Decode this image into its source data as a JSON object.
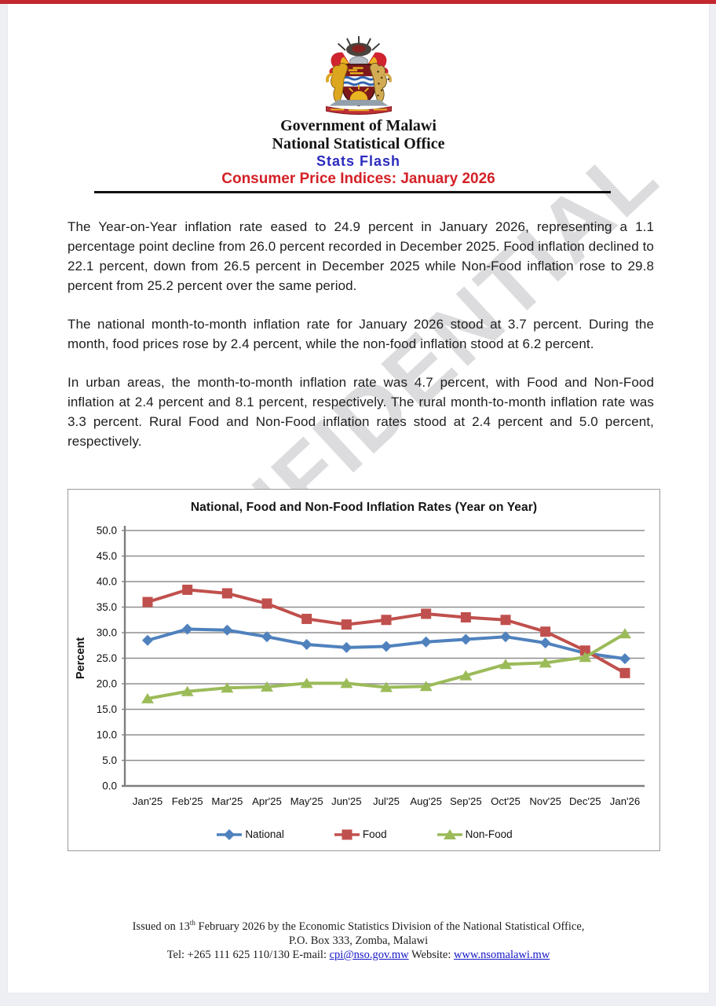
{
  "page": {
    "watermark": "CONFIDENTIAL",
    "header": {
      "org_line1": "Government of Malawi",
      "org_line2": "National Statistical Office",
      "subtitle": "Stats Flash",
      "title": "Consumer Price Indices: January 2026",
      "crest_icon": "malawi-coat-of-arms"
    },
    "paragraphs": [
      "The Year-on-Year inflation rate eased to 24.9 percent in January 2026, representing a 1.1 percentage point decline from 26.0 percent recorded in December 2025. Food inflation declined to 22.1 percent, down from 26.5 percent in December 2025 while Non-Food inflation rose to 29.8 percent from 25.2 percent over the same period.",
      "The national month-to-month inflation rate for January 2026 stood at 3.7 percent. During the month, food prices rose by 2.4 percent, while the non-food inflation stood at 6.2 percent.",
      "In urban areas, the month-to-month inflation rate was 4.7 percent, with Food and Non-Food inflation at 2.4 percent and 8.1 percent, respectively. The rural month-to-month inflation rate was 3.3 percent. Rural Food and Non-Food inflation rates stood at 2.4 percent and 5.0 percent, respectively."
    ],
    "footer": {
      "line1_prefix": "Issued on 13",
      "line1_sup": "th",
      "line1_rest": " February 2026 by the Economic Statistics Division of the National Statistical Office,",
      "line2": "P.O. Box 333, Zomba, Malawi",
      "line3_tel": "Tel: +265 111 625 110/130 E-mail: ",
      "email_link": "cpi@nso.gov.mw",
      "line3_web": " Website: ",
      "website_link": "www.nsomalawi.mw"
    },
    "accent_colors": {
      "top_bar_red": "#c2282e",
      "title_red": "#d42127",
      "subtitle_blue": "#2b2bbd"
    }
  },
  "chart_data": {
    "type": "line",
    "title": "National, Food and Non-Food Inflation Rates (Year on Year)",
    "xlabel": "",
    "ylabel": "Percent",
    "ylim": [
      0,
      50
    ],
    "ytick_step": 5,
    "grid": true,
    "legend_position": "bottom",
    "categories": [
      "Jan'25",
      "Feb'25",
      "Mar'25",
      "Apr'25",
      "May'25",
      "Jun'25",
      "Jul'25",
      "Aug'25",
      "Sep'25",
      "Oct'25",
      "Nov'25",
      "Dec'25",
      "Jan'26"
    ],
    "series": [
      {
        "name": "National",
        "color": "#4F81BD",
        "marker": "diamond",
        "values": [
          28.5,
          30.7,
          30.5,
          29.2,
          27.7,
          27.1,
          27.3,
          28.2,
          28.7,
          29.2,
          28.0,
          26.0,
          24.9
        ]
      },
      {
        "name": "Food",
        "color": "#C0504D",
        "marker": "square",
        "values": [
          36.0,
          38.4,
          37.7,
          35.7,
          32.7,
          31.6,
          32.5,
          33.7,
          33.0,
          32.5,
          30.2,
          26.5,
          22.1
        ]
      },
      {
        "name": "Non-Food",
        "color": "#9BBB59",
        "marker": "triangle",
        "values": [
          17.1,
          18.5,
          19.2,
          19.4,
          20.1,
          20.1,
          19.3,
          19.5,
          21.6,
          23.8,
          24.1,
          25.2,
          29.8
        ]
      }
    ]
  }
}
